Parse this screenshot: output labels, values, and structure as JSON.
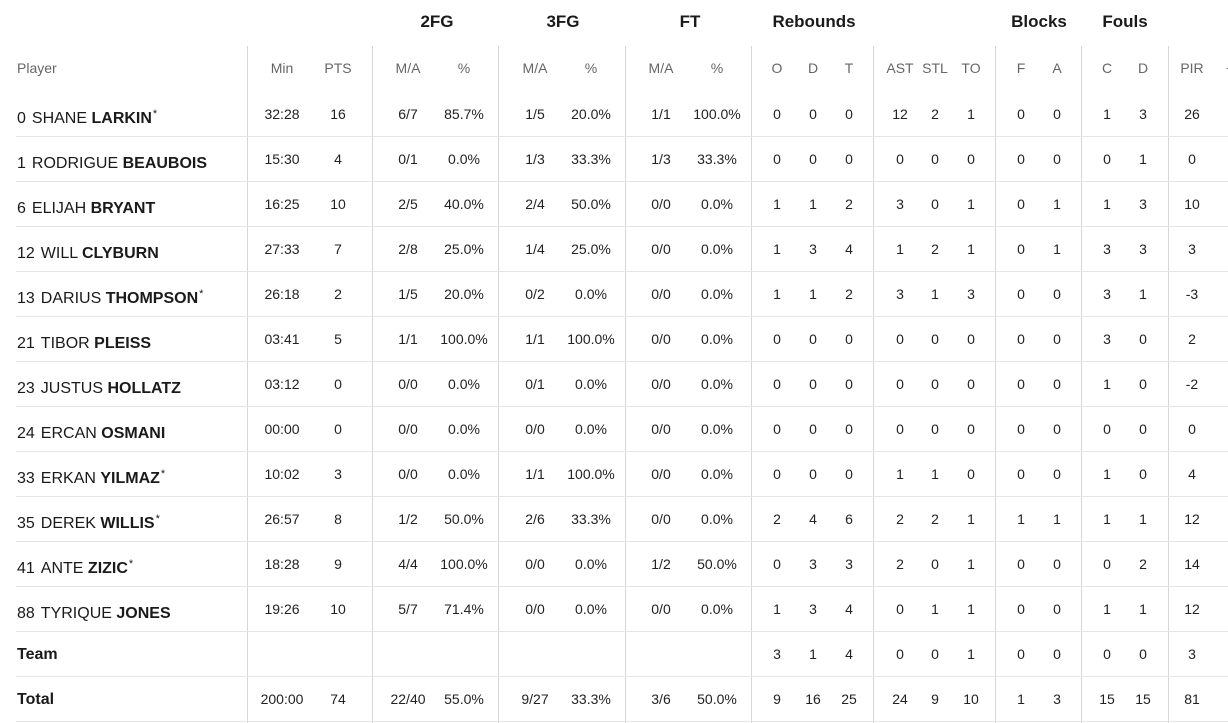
{
  "group_headers": {
    "fg2": "2FG",
    "fg3": "3FG",
    "ft": "FT",
    "rebounds": "Rebounds",
    "blocks": "Blocks",
    "fouls": "Fouls"
  },
  "columns": {
    "player": "Player",
    "min": "Min",
    "pts": "PTS",
    "fg2_ma": "M/A",
    "fg2_pct": "%",
    "fg3_ma": "M/A",
    "fg3_pct": "%",
    "ft_ma": "M/A",
    "ft_pct": "%",
    "o": "O",
    "d": "D",
    "t": "T",
    "ast": "AST",
    "stl": "STL",
    "to": "TO",
    "bf": "F",
    "ba": "A",
    "fc": "C",
    "fd": "D",
    "pir": "PIR",
    "pm": "+/-"
  },
  "players": [
    {
      "num": "0",
      "first": "SHANE",
      "last": "LARKIN",
      "star": "*",
      "min": "32:28",
      "pts": "16",
      "fg2_ma": "6/7",
      "fg2_pct": "85.7%",
      "fg3_ma": "1/5",
      "fg3_pct": "20.0%",
      "ft_ma": "1/1",
      "ft_pct": "100.0%",
      "o": "0",
      "d": "0",
      "t": "0",
      "ast": "12",
      "stl": "2",
      "to": "1",
      "bf": "0",
      "ba": "0",
      "fc": "1",
      "fd": "3",
      "pir": "26"
    },
    {
      "num": "1",
      "first": "RODRIGUE",
      "last": "BEAUBOIS",
      "star": "",
      "min": "15:30",
      "pts": "4",
      "fg2_ma": "0/1",
      "fg2_pct": "0.0%",
      "fg3_ma": "1/3",
      "fg3_pct": "33.3%",
      "ft_ma": "1/3",
      "ft_pct": "33.3%",
      "o": "0",
      "d": "0",
      "t": "0",
      "ast": "0",
      "stl": "0",
      "to": "0",
      "bf": "0",
      "ba": "0",
      "fc": "0",
      "fd": "1",
      "pir": "0"
    },
    {
      "num": "6",
      "first": "ELIJAH",
      "last": "BRYANT",
      "star": "",
      "min": "16:25",
      "pts": "10",
      "fg2_ma": "2/5",
      "fg2_pct": "40.0%",
      "fg3_ma": "2/4",
      "fg3_pct": "50.0%",
      "ft_ma": "0/0",
      "ft_pct": "0.0%",
      "o": "1",
      "d": "1",
      "t": "2",
      "ast": "3",
      "stl": "0",
      "to": "1",
      "bf": "0",
      "ba": "1",
      "fc": "1",
      "fd": "3",
      "pir": "10"
    },
    {
      "num": "12",
      "first": "WILL",
      "last": "CLYBURN",
      "star": "",
      "min": "27:33",
      "pts": "7",
      "fg2_ma": "2/8",
      "fg2_pct": "25.0%",
      "fg3_ma": "1/4",
      "fg3_pct": "25.0%",
      "ft_ma": "0/0",
      "ft_pct": "0.0%",
      "o": "1",
      "d": "3",
      "t": "4",
      "ast": "1",
      "stl": "2",
      "to": "1",
      "bf": "0",
      "ba": "1",
      "fc": "3",
      "fd": "3",
      "pir": "3"
    },
    {
      "num": "13",
      "first": "DARIUS",
      "last": "THOMPSON",
      "star": "*",
      "min": "26:18",
      "pts": "2",
      "fg2_ma": "1/5",
      "fg2_pct": "20.0%",
      "fg3_ma": "0/2",
      "fg3_pct": "0.0%",
      "ft_ma": "0/0",
      "ft_pct": "0.0%",
      "o": "1",
      "d": "1",
      "t": "2",
      "ast": "3",
      "stl": "1",
      "to": "3",
      "bf": "0",
      "ba": "0",
      "fc": "3",
      "fd": "1",
      "pir": "-3"
    },
    {
      "num": "21",
      "first": "TIBOR",
      "last": "PLEISS",
      "star": "",
      "min": "03:41",
      "pts": "5",
      "fg2_ma": "1/1",
      "fg2_pct": "100.0%",
      "fg3_ma": "1/1",
      "fg3_pct": "100.0%",
      "ft_ma": "0/0",
      "ft_pct": "0.0%",
      "o": "0",
      "d": "0",
      "t": "0",
      "ast": "0",
      "stl": "0",
      "to": "0",
      "bf": "0",
      "ba": "0",
      "fc": "3",
      "fd": "0",
      "pir": "2"
    },
    {
      "num": "23",
      "first": "JUSTUS",
      "last": "HOLLATZ",
      "star": "",
      "min": "03:12",
      "pts": "0",
      "fg2_ma": "0/0",
      "fg2_pct": "0.0%",
      "fg3_ma": "0/1",
      "fg3_pct": "0.0%",
      "ft_ma": "0/0",
      "ft_pct": "0.0%",
      "o": "0",
      "d": "0",
      "t": "0",
      "ast": "0",
      "stl": "0",
      "to": "0",
      "bf": "0",
      "ba": "0",
      "fc": "1",
      "fd": "0",
      "pir": "-2"
    },
    {
      "num": "24",
      "first": "ERCAN",
      "last": "OSMANI",
      "star": "",
      "min": "00:00",
      "pts": "0",
      "fg2_ma": "0/0",
      "fg2_pct": "0.0%",
      "fg3_ma": "0/0",
      "fg3_pct": "0.0%",
      "ft_ma": "0/0",
      "ft_pct": "0.0%",
      "o": "0",
      "d": "0",
      "t": "0",
      "ast": "0",
      "stl": "0",
      "to": "0",
      "bf": "0",
      "ba": "0",
      "fc": "0",
      "fd": "0",
      "pir": "0"
    },
    {
      "num": "33",
      "first": "ERKAN",
      "last": "YILMAZ",
      "star": "*",
      "min": "10:02",
      "pts": "3",
      "fg2_ma": "0/0",
      "fg2_pct": "0.0%",
      "fg3_ma": "1/1",
      "fg3_pct": "100.0%",
      "ft_ma": "0/0",
      "ft_pct": "0.0%",
      "o": "0",
      "d": "0",
      "t": "0",
      "ast": "1",
      "stl": "1",
      "to": "0",
      "bf": "0",
      "ba": "0",
      "fc": "1",
      "fd": "0",
      "pir": "4"
    },
    {
      "num": "35",
      "first": "DEREK",
      "last": "WILLIS",
      "star": "*",
      "min": "26:57",
      "pts": "8",
      "fg2_ma": "1/2",
      "fg2_pct": "50.0%",
      "fg3_ma": "2/6",
      "fg3_pct": "33.3%",
      "ft_ma": "0/0",
      "ft_pct": "0.0%",
      "o": "2",
      "d": "4",
      "t": "6",
      "ast": "2",
      "stl": "2",
      "to": "1",
      "bf": "1",
      "ba": "1",
      "fc": "1",
      "fd": "1",
      "pir": "12"
    },
    {
      "num": "41",
      "first": "ANTE",
      "last": "ZIZIC",
      "star": "*",
      "min": "18:28",
      "pts": "9",
      "fg2_ma": "4/4",
      "fg2_pct": "100.0%",
      "fg3_ma": "0/0",
      "fg3_pct": "0.0%",
      "ft_ma": "1/2",
      "ft_pct": "50.0%",
      "o": "0",
      "d": "3",
      "t": "3",
      "ast": "2",
      "stl": "0",
      "to": "1",
      "bf": "0",
      "ba": "0",
      "fc": "0",
      "fd": "2",
      "pir": "14"
    },
    {
      "num": "88",
      "first": "TYRIQUE",
      "last": "JONES",
      "star": "",
      "min": "19:26",
      "pts": "10",
      "fg2_ma": "5/7",
      "fg2_pct": "71.4%",
      "fg3_ma": "0/0",
      "fg3_pct": "0.0%",
      "ft_ma": "0/0",
      "ft_pct": "0.0%",
      "o": "1",
      "d": "3",
      "t": "4",
      "ast": "0",
      "stl": "1",
      "to": "1",
      "bf": "0",
      "ba": "0",
      "fc": "1",
      "fd": "1",
      "pir": "12"
    }
  ],
  "team": {
    "label": "Team",
    "min": "",
    "pts": "",
    "fg2_ma": "",
    "fg2_pct": "",
    "fg3_ma": "",
    "fg3_pct": "",
    "ft_ma": "",
    "ft_pct": "",
    "o": "3",
    "d": "1",
    "t": "4",
    "ast": "0",
    "stl": "0",
    "to": "1",
    "bf": "0",
    "ba": "0",
    "fc": "0",
    "fd": "0",
    "pir": "3"
  },
  "total": {
    "label": "Total",
    "min": "200:00",
    "pts": "74",
    "fg2_ma": "22/40",
    "fg2_pct": "55.0%",
    "fg3_ma": "9/27",
    "fg3_pct": "33.3%",
    "ft_ma": "3/6",
    "ft_pct": "50.0%",
    "o": "9",
    "d": "16",
    "t": "25",
    "ast": "24",
    "stl": "9",
    "to": "10",
    "bf": "1",
    "ba": "3",
    "fc": "15",
    "fd": "15",
    "pir": "81"
  }
}
